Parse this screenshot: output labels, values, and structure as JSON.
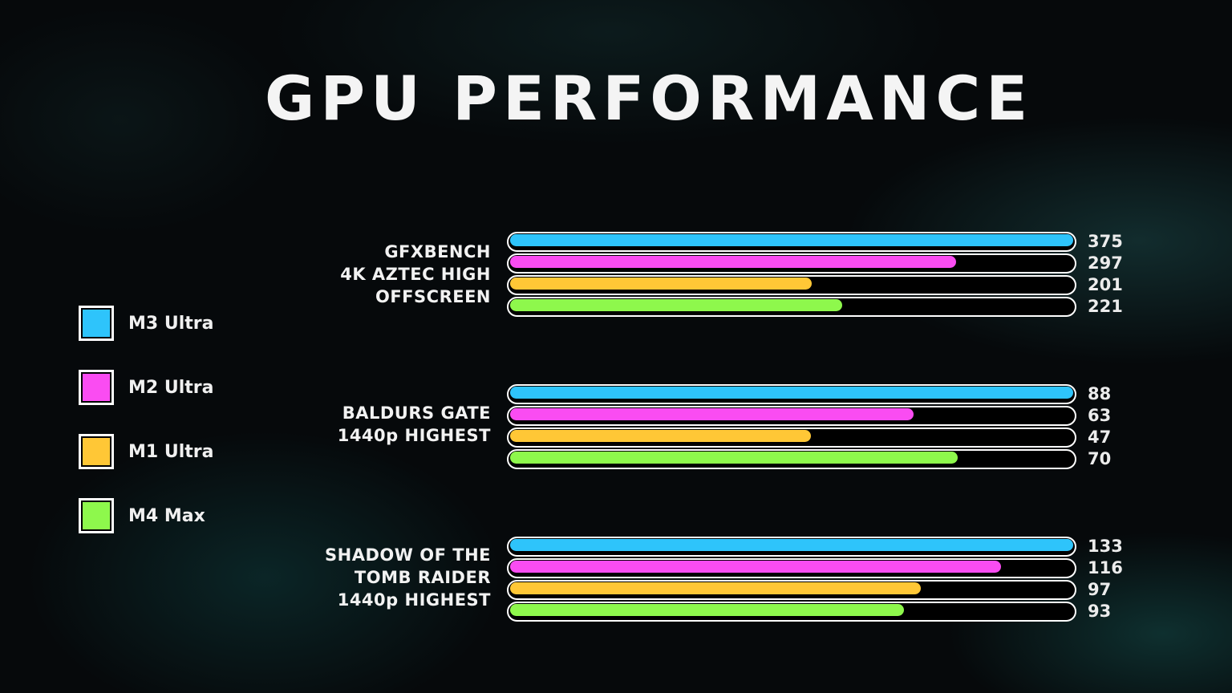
{
  "title": "GPU PERFORMANCE",
  "legend": [
    {
      "label": "M3 Ultra",
      "color": "#2ec4fb"
    },
    {
      "label": "M2 Ultra",
      "color": "#fa4cf2"
    },
    {
      "label": "M1 Ultra",
      "color": "#ffc736"
    },
    {
      "label": "M4 Max",
      "color": "#8ef84c"
    }
  ],
  "groups": [
    {
      "label_lines": [
        "GFXBENCH",
        "4K AZTEC HIGH",
        "OFFSCREEN"
      ],
      "values": [
        375,
        297,
        201,
        221
      ]
    },
    {
      "label_lines": [
        "BALDURS GATE",
        "1440p HIGHEST"
      ],
      "values": [
        88,
        63,
        47,
        70
      ]
    },
    {
      "label_lines": [
        "SHADOW OF THE",
        "TOMB RAIDER",
        "1440p HIGHEST"
      ],
      "values": [
        133,
        116,
        97,
        93
      ]
    }
  ],
  "chart_data": {
    "type": "bar",
    "orientation": "horizontal",
    "title": "GPU PERFORMANCE",
    "categories": [
      "GFXBENCH 4K AZTEC HIGH OFFSCREEN",
      "BALDURS GATE 1440p HIGHEST",
      "SHADOW OF THE TOMB RAIDER 1440p HIGHEST"
    ],
    "series": [
      {
        "name": "M3 Ultra",
        "color": "#2ec4fb",
        "values": [
          375,
          88,
          133
        ]
      },
      {
        "name": "M2 Ultra",
        "color": "#fa4cf2",
        "values": [
          297,
          63,
          116
        ]
      },
      {
        "name": "M1 Ultra",
        "color": "#ffc736",
        "values": [
          201,
          47,
          97
        ]
      },
      {
        "name": "M4 Max",
        "color": "#8ef84c",
        "values": [
          221,
          70,
          93
        ]
      }
    ],
    "xlabel": "",
    "ylabel": "",
    "normalization": "per-group, relative to the group maximum",
    "grid": false,
    "legend_position": "left",
    "data_labels": true
  }
}
